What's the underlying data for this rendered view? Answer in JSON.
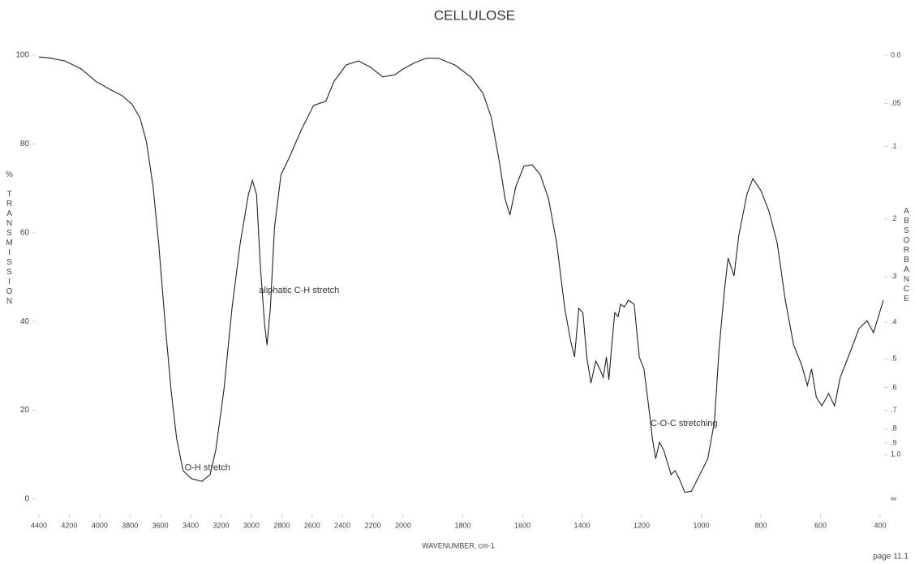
{
  "chart_data": {
    "type": "line",
    "title": "CELLULOSE",
    "xlabel": "WAVENUMBER, cm-1",
    "ylabel": "% TRANSMISSION",
    "y2label": "ABSORBANCE",
    "footer": "page 11.1",
    "xlim": [
      4400,
      400
    ],
    "x_scale_change": 2000,
    "xticks": [
      4400,
      4200,
      4000,
      3800,
      3600,
      3400,
      3200,
      3000,
      2800,
      2600,
      2400,
      2200,
      2000,
      1800,
      1600,
      1400,
      1200,
      1000,
      800,
      600,
      400
    ],
    "ylim": [
      0,
      100
    ],
    "yticks": [
      0,
      20,
      40,
      60,
      80,
      100
    ],
    "y2ticks": [
      {
        "value": 0,
        "label": "0.0"
      },
      {
        "value": 0.05,
        "label": ".05"
      },
      {
        "value": 0.1,
        "label": ".1"
      },
      {
        "value": 0.2,
        "label": ".2"
      },
      {
        "value": 0.3,
        "label": ".3"
      },
      {
        "value": 0.4,
        "label": ".4"
      },
      {
        "value": 0.5,
        "label": ".5"
      },
      {
        "value": 0.6,
        "label": ".6"
      },
      {
        "value": 0.7,
        "label": ".7"
      },
      {
        "value": 0.8,
        "label": ".8"
      },
      {
        "value": 0.9,
        "label": ".9"
      },
      {
        "value": 1.0,
        "label": "1.0"
      }
    ],
    "y2_infinity_label": "∞",
    "annotations": [
      {
        "text": "O-H stretch",
        "x": 3440,
        "y": 7
      },
      {
        "text": "aliphatic C-H stretch",
        "x": 2950,
        "y": 47
      },
      {
        "text": "C-O-C stretching",
        "x": 1170,
        "y": 17
      }
    ],
    "series": [
      {
        "name": "CELLULOSE",
        "color": "#222222",
        "x": [
          4400,
          4336,
          4228,
          4121,
          4024,
          3933,
          3852,
          3788,
          3734,
          3691,
          3648,
          3611,
          3568,
          3530,
          3493,
          3450,
          3396,
          3326,
          3272,
          3235,
          3181,
          3128,
          3074,
          3020,
          2993,
          2966,
          2940,
          2913,
          2897,
          2875,
          2848,
          2805,
          2752,
          2671,
          2590,
          2510,
          2456,
          2375,
          2295,
          2215,
          2134,
          2054,
          2000,
          1964,
          1923,
          1882,
          1827,
          1773,
          1732,
          1704,
          1677,
          1658,
          1642,
          1622,
          1595,
          1567,
          1540,
          1512,
          1485,
          1458,
          1438,
          1425,
          1411,
          1397,
          1384,
          1370,
          1354,
          1340,
          1329,
          1318,
          1310,
          1299,
          1290,
          1279,
          1271,
          1258,
          1244,
          1225,
          1208,
          1192,
          1175,
          1164,
          1153,
          1140,
          1126,
          1115,
          1101,
          1088,
          1074,
          1055,
          1033,
          1005,
          978,
          956,
          940,
          923,
          910,
          890,
          874,
          847,
          827,
          800,
          773,
          745,
          718,
          690,
          663,
          644,
          630,
          614,
          595,
          573,
          553,
          534,
          507,
          471,
          444,
          422,
          389
        ],
        "values": [
          99.6,
          99.4,
          98.7,
          96.9,
          94.1,
          92.3,
          90.9,
          89,
          85.9,
          80.4,
          70.4,
          57.6,
          39.3,
          24.7,
          13.7,
          6.4,
          4.6,
          4,
          5.5,
          11,
          24.7,
          43,
          57.6,
          68.6,
          71.8,
          68.6,
          52.1,
          39.3,
          34.7,
          43,
          61.2,
          73.1,
          76.8,
          83.2,
          88.7,
          89.6,
          94.1,
          97.8,
          98.7,
          97.3,
          95.1,
          95.6,
          96.9,
          98.2,
          99.3,
          99.3,
          97.8,
          95.1,
          91.4,
          85.9,
          75.9,
          67.6,
          64,
          70.4,
          75,
          75.3,
          73.1,
          67.6,
          57.6,
          43,
          35.6,
          32,
          43,
          42,
          32,
          26.1,
          31.1,
          29.3,
          27.4,
          32,
          26.9,
          35.6,
          42,
          41.1,
          43.9,
          43.3,
          44.8,
          43.9,
          32,
          29.3,
          20.1,
          13.7,
          9.1,
          12.8,
          11,
          8.6,
          5.5,
          6.4,
          4.6,
          1.5,
          1.8,
          5.5,
          9.1,
          17.4,
          33.8,
          46.6,
          54.3,
          50.3,
          59.4,
          68.6,
          72.2,
          69.5,
          64.9,
          57.6,
          44.8,
          34.7,
          30.2,
          25.6,
          29.3,
          22.9,
          21,
          23.8,
          21,
          27.4,
          32,
          38.4,
          40.2,
          37.5,
          44.8
        ]
      }
    ]
  }
}
